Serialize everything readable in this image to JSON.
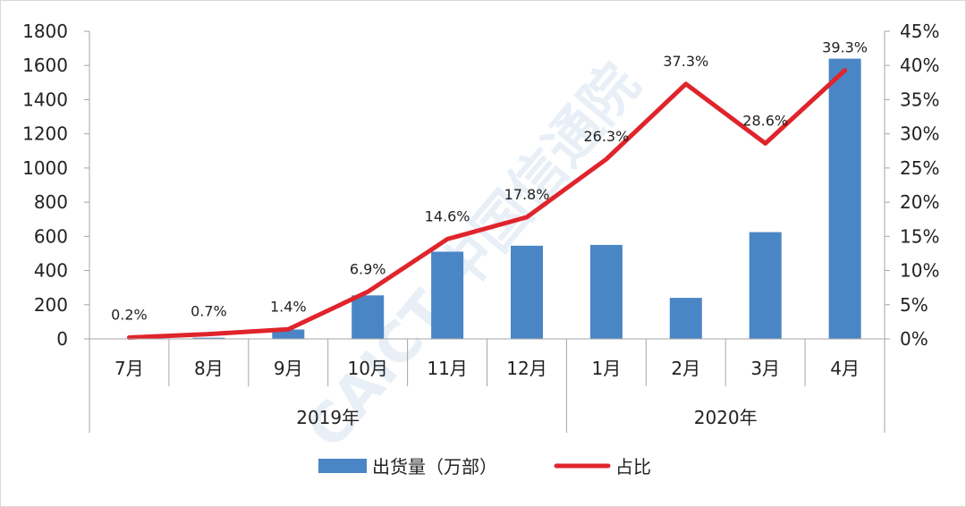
{
  "chart_data": {
    "type": "bar+line",
    "categories": [
      "7月",
      "8月",
      "9月",
      "10月",
      "11月",
      "12月",
      "1月",
      "2月",
      "3月",
      "4月"
    ],
    "year_groups": [
      {
        "label": "2019年",
        "span": 6
      },
      {
        "label": "2020年",
        "span": 4
      }
    ],
    "series": [
      {
        "name": "出货量（万部）",
        "type": "bar",
        "axis": "left",
        "color": "#4a86c5",
        "values": [
          0,
          7,
          55,
          255,
          510,
          545,
          550,
          240,
          625,
          1640
        ]
      },
      {
        "name": "占比",
        "type": "line",
        "axis": "right",
        "color": "#e0242c",
        "values": [
          0.2,
          0.7,
          1.4,
          6.9,
          14.6,
          17.8,
          26.3,
          37.3,
          28.6,
          39.3
        ],
        "data_labels": [
          "0.2%",
          "0.7%",
          "1.4%",
          "6.9%",
          "14.6%",
          "17.8%",
          "26.3%",
          "37.3%",
          "28.6%",
          "39.3%"
        ]
      }
    ],
    "y_left": {
      "ylim": [
        0,
        1800
      ],
      "ticks": [
        0,
        200,
        400,
        600,
        800,
        1000,
        1200,
        1400,
        1600,
        1800
      ],
      "tick_labels": [
        "0",
        "200",
        "400",
        "600",
        "800",
        "1000",
        "1200",
        "1400",
        "1600",
        "1800"
      ]
    },
    "y_right": {
      "ylim": [
        0,
        45
      ],
      "ticks": [
        0,
        5,
        10,
        15,
        20,
        25,
        30,
        35,
        40,
        45
      ],
      "tick_labels": [
        "0%",
        "5%",
        "10%",
        "15%",
        "20%",
        "25%",
        "30%",
        "35%",
        "40%",
        "45%"
      ]
    },
    "grid": false,
    "legend": {
      "position": "bottom",
      "entries": [
        "出货量（万部）",
        "占比"
      ]
    },
    "watermark": "CAICT 中国信通院",
    "title": "",
    "xlabel": "",
    "ylabel": ""
  }
}
